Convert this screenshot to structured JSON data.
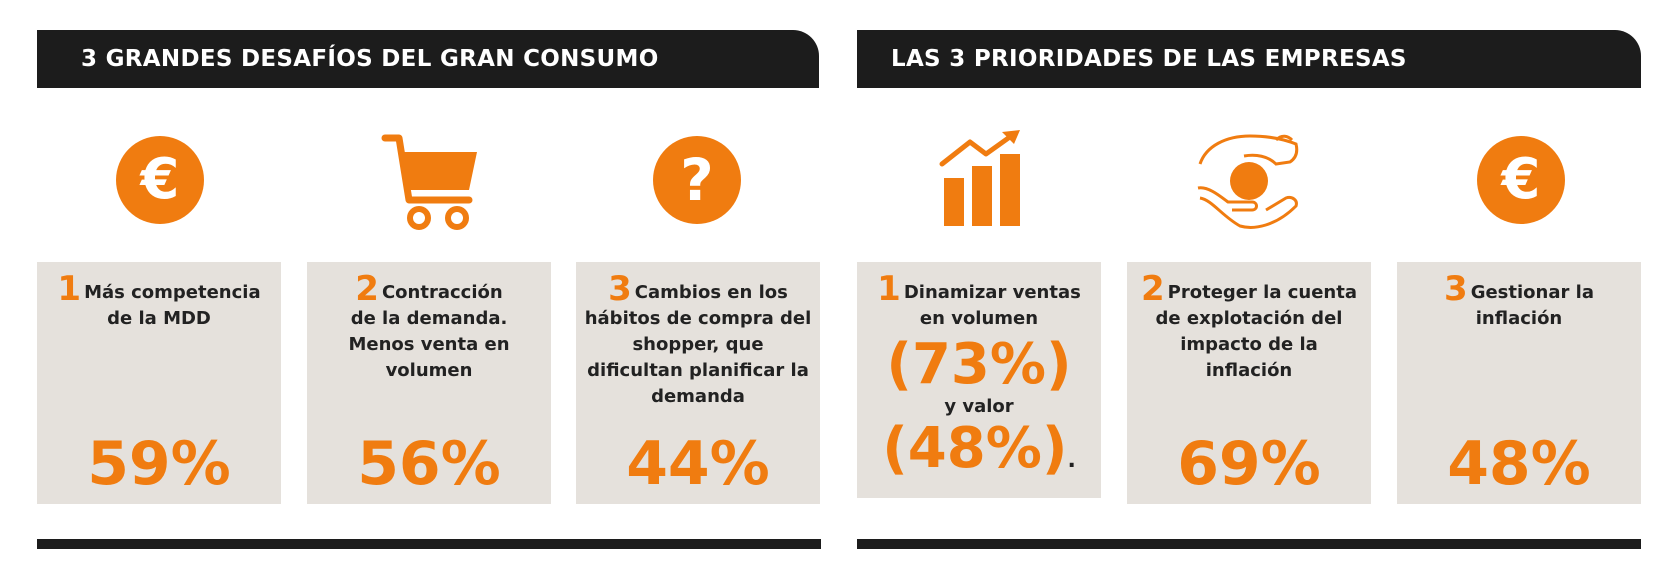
{
  "left": {
    "header": "3 GRANDES DESAFÍOS DEL GRAN CONSUMO",
    "cards": [
      {
        "num": "1",
        "text": "Más competencia de la MDD",
        "value": "59%",
        "icon": "euro-icon"
      },
      {
        "num": "2",
        "text": "Contracción de la demanda. Menos venta en volumen",
        "value": "56%",
        "icon": "shopping-cart-icon"
      },
      {
        "num": "3",
        "text": "Cambios en los hábitos de compra del shopper, que dificultan planificar la demanda",
        "value": "44%",
        "icon": "question-icon"
      }
    ]
  },
  "right": {
    "header": "LAS 3 PRIORIDADES DE LAS EMPRESAS",
    "cards": [
      {
        "num": "1",
        "text": "Dinamizar ventas en volumen",
        "value_a": "(73%)",
        "connector": "y valor",
        "value_b": "(48%)",
        "tail": ".",
        "icon": "growth-chart-icon"
      },
      {
        "num": "2",
        "text": "Proteger la cuenta de explotación del impacto de la inflación",
        "value": "69%",
        "icon": "hands-protect-icon"
      },
      {
        "num": "3",
        "text": "Gestionar la inflación",
        "value": "48%",
        "icon": "euro-icon"
      }
    ]
  },
  "colors": {
    "accent": "#f07c10",
    "dark": "#1c1c1c",
    "card": "#e5e1dc"
  }
}
